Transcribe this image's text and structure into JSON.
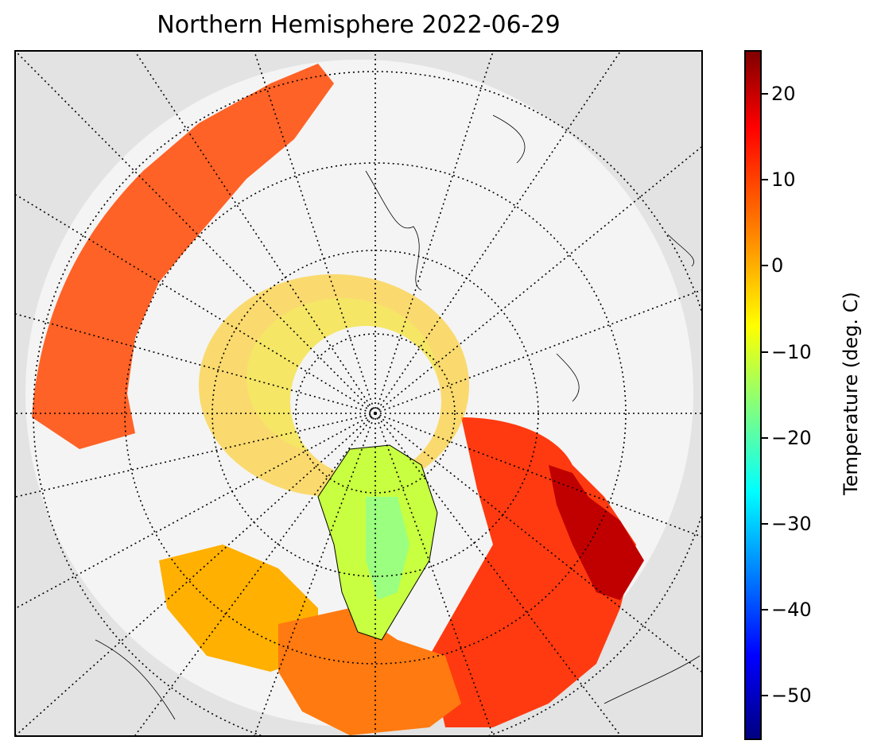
{
  "title": "Northern Hemisphere 2022-06-29",
  "colorbar": {
    "label": "Temperature (deg. C)",
    "range": [
      -55,
      25
    ],
    "ticks": [
      "20",
      "10",
      "0",
      "−10",
      "−20",
      "−30",
      "−40",
      "−50"
    ],
    "colors": [
      "#800000",
      "#ff0000",
      "#ff8000",
      "#ffff00",
      "#80ff80",
      "#00ffff",
      "#0080ff",
      "#0000ff",
      "#000080"
    ]
  },
  "map": {
    "projection": "north-polar-stereographic",
    "graticule": "dotted",
    "background": "#e3e3e3",
    "no_data_color": "#f2f2f2"
  }
}
